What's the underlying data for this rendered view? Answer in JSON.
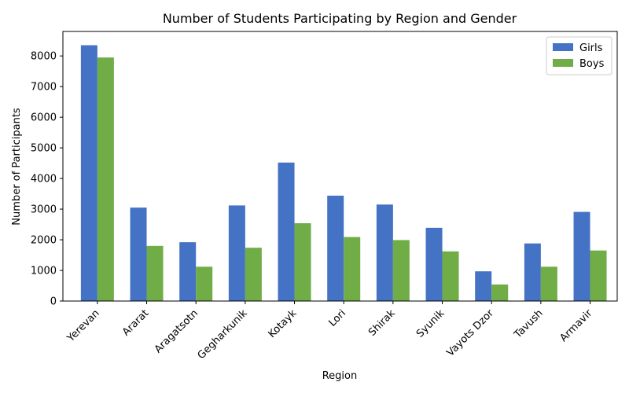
{
  "chart_data": {
    "type": "bar",
    "title": "Number of Students Participating by Region and Gender",
    "xlabel": "Region",
    "ylabel": "Number of Participants",
    "categories": [
      "Yerevan",
      "Ararat",
      "Aragatsotn",
      "Gegharkunik",
      "Kotayk",
      "Lori",
      "Shirak",
      "Syunik",
      "Vayots Dzor",
      "Tavush",
      "Armavir"
    ],
    "series": [
      {
        "name": "Girls",
        "color": "#4472c4",
        "values": [
          8350,
          3050,
          1920,
          3120,
          4520,
          3440,
          3150,
          2390,
          970,
          1880,
          2910
        ]
      },
      {
        "name": "Boys",
        "color": "#70ad47",
        "values": [
          7950,
          1800,
          1120,
          1740,
          2540,
          2090,
          1990,
          1620,
          540,
          1120,
          1650
        ]
      }
    ],
    "ylim": [
      0,
      8800
    ],
    "yticks": [
      0,
      1000,
      2000,
      3000,
      4000,
      5000,
      6000,
      7000,
      8000
    ],
    "legend_position": "top-right",
    "grid": false
  }
}
